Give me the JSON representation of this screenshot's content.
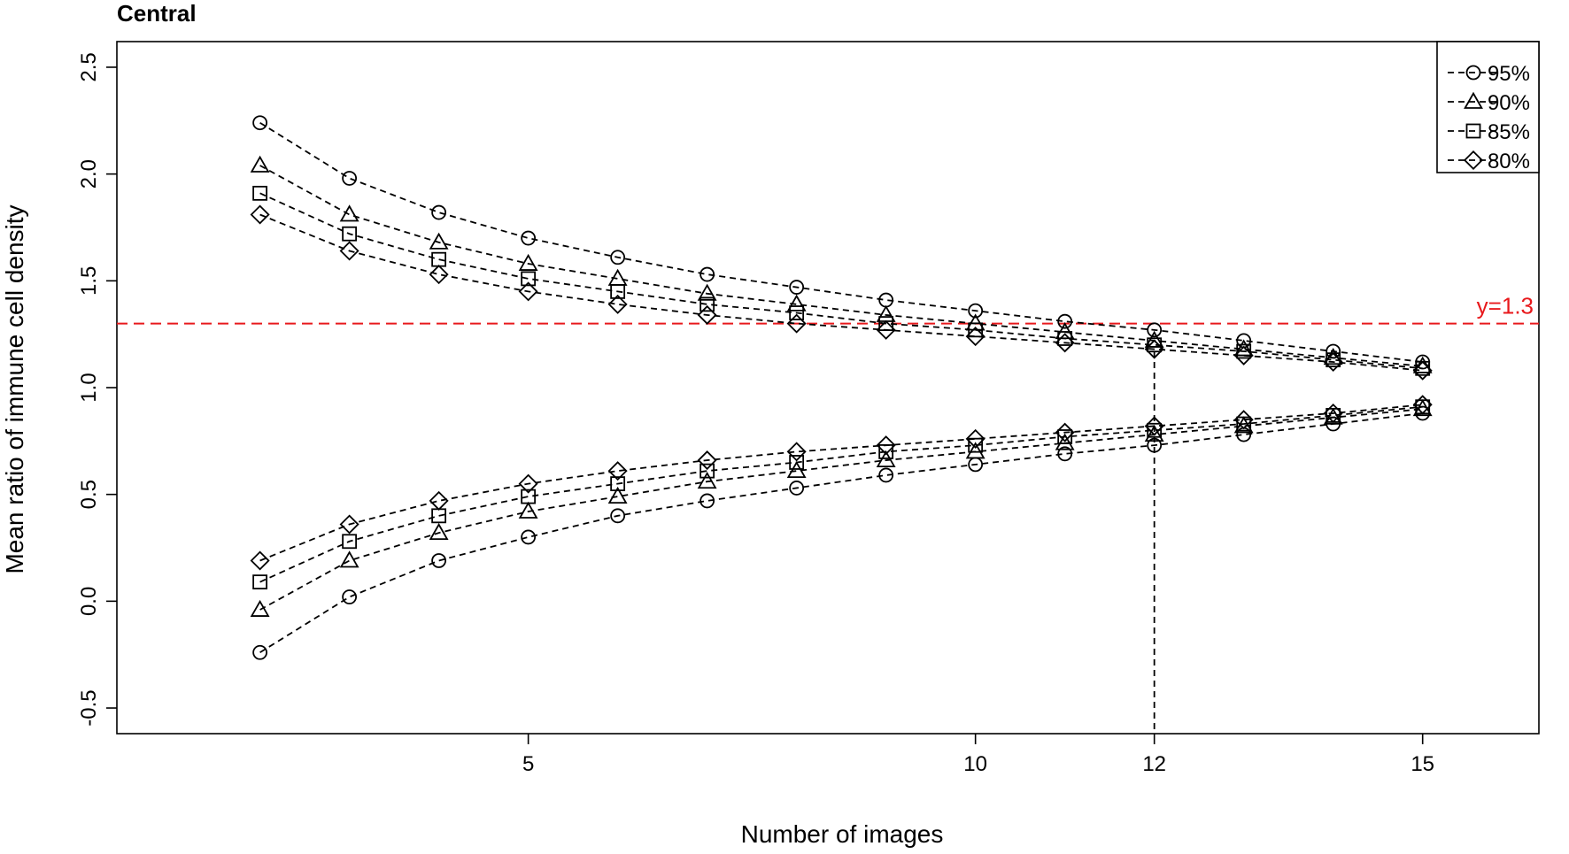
{
  "chart_data": {
    "type": "line",
    "title": "Central",
    "xlabel": "Number of images",
    "ylabel": "Mean ratio of immune cell density",
    "xlim": [
      0.4,
      16.3
    ],
    "ylim": [
      -0.62,
      2.62
    ],
    "x_ticks": [
      5,
      10,
      12,
      15
    ],
    "y_ticks": [
      -0.5,
      0.0,
      0.5,
      1.0,
      1.5,
      2.0,
      2.5
    ],
    "y_tick_labels": [
      "-0.5",
      "0.0",
      "0.5",
      "1.0",
      "1.5",
      "2.0",
      "2.5"
    ],
    "x": [
      2,
      3,
      4,
      5,
      6,
      7,
      8,
      9,
      10,
      11,
      12,
      13,
      14,
      15
    ],
    "series": [
      {
        "name": "95%",
        "marker": "circle",
        "upper": [
          2.24,
          1.98,
          1.82,
          1.7,
          1.61,
          1.53,
          1.47,
          1.41,
          1.36,
          1.31,
          1.27,
          1.22,
          1.17,
          1.12
        ],
        "lower": [
          -0.24,
          0.02,
          0.19,
          0.3,
          0.4,
          0.47,
          0.53,
          0.59,
          0.64,
          0.69,
          0.73,
          0.78,
          0.83,
          0.88
        ]
      },
      {
        "name": "90%",
        "marker": "triangle",
        "upper": [
          2.04,
          1.81,
          1.68,
          1.58,
          1.51,
          1.44,
          1.39,
          1.34,
          1.3,
          1.26,
          1.22,
          1.18,
          1.14,
          1.1
        ],
        "lower": [
          -0.04,
          0.19,
          0.32,
          0.42,
          0.49,
          0.56,
          0.61,
          0.66,
          0.7,
          0.74,
          0.78,
          0.82,
          0.86,
          0.9
        ]
      },
      {
        "name": "85%",
        "marker": "square",
        "upper": [
          1.91,
          1.72,
          1.6,
          1.51,
          1.45,
          1.39,
          1.35,
          1.3,
          1.27,
          1.23,
          1.2,
          1.17,
          1.13,
          1.09
        ],
        "lower": [
          0.09,
          0.28,
          0.4,
          0.49,
          0.55,
          0.61,
          0.65,
          0.7,
          0.73,
          0.77,
          0.8,
          0.83,
          0.87,
          0.91
        ]
      },
      {
        "name": "80%",
        "marker": "diamond",
        "upper": [
          1.81,
          1.64,
          1.53,
          1.45,
          1.39,
          1.34,
          1.3,
          1.27,
          1.24,
          1.21,
          1.18,
          1.15,
          1.12,
          1.08
        ],
        "lower": [
          0.19,
          0.36,
          0.47,
          0.55,
          0.61,
          0.66,
          0.7,
          0.73,
          0.76,
          0.79,
          0.82,
          0.85,
          0.88,
          0.92
        ]
      }
    ],
    "reference_line": {
      "y": 1.3,
      "label": "y=1.3",
      "color": "#e8191c"
    },
    "vertical_marker": {
      "x": 12,
      "from_y": 1.17
    },
    "legend_position": "top-right",
    "grid": false
  }
}
